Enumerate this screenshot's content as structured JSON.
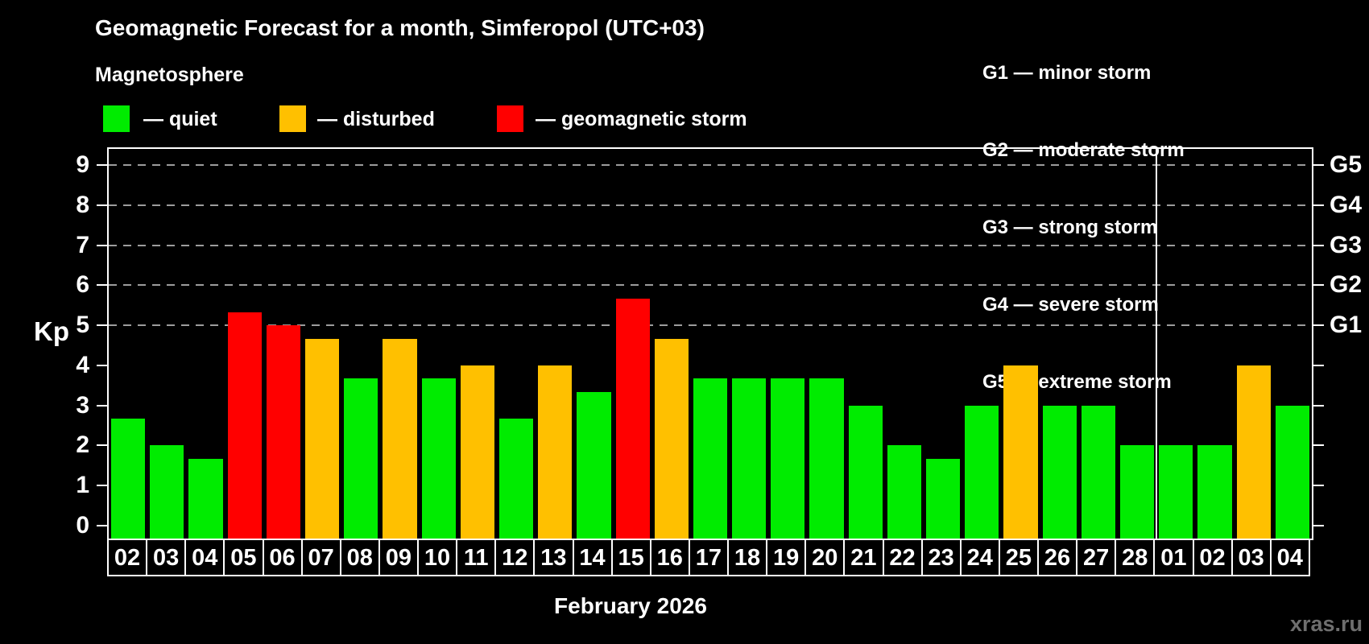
{
  "title": "Geomagnetic Forecast for a month, Simferopol (UTC+03)",
  "subtitle": "Magnetosphere",
  "legend": {
    "quiet": {
      "label": "— quiet",
      "color": "#00ec00"
    },
    "disturbed": {
      "label": "— disturbed",
      "color": "#ffc000"
    },
    "storm": {
      "label": "— geomagnetic storm",
      "color": "#ff0000"
    }
  },
  "storm_scale": [
    "G1 — minor storm",
    "G2 — moderate storm",
    "G3 — strong storm",
    "G4 — severe storm",
    "G5 — extreme storm"
  ],
  "chart_data": {
    "type": "bar",
    "title": "Geomagnetic Forecast for a month, Simferopol (UTC+03)",
    "xlabel": "February 2026",
    "ylabel": "Kp",
    "ylim": [
      -0.33,
      9.41
    ],
    "yticks": [
      0,
      1,
      2,
      3,
      4,
      5,
      6,
      7,
      8,
      9
    ],
    "gridlines": [
      5,
      6,
      7,
      8,
      9
    ],
    "grid": "dashed horizontal at Kp 5-9, behind bars",
    "legend_position": "top",
    "right_axis": [
      {
        "kp": 5,
        "g": "G1"
      },
      {
        "kp": 6,
        "g": "G2"
      },
      {
        "kp": 7,
        "g": "G3"
      },
      {
        "kp": 8,
        "g": "G4"
      },
      {
        "kp": 9,
        "g": "G5"
      }
    ],
    "categories": [
      "02",
      "03",
      "04",
      "05",
      "06",
      "07",
      "08",
      "09",
      "10",
      "11",
      "12",
      "13",
      "14",
      "15",
      "16",
      "17",
      "18",
      "19",
      "20",
      "21",
      "22",
      "23",
      "24",
      "25",
      "26",
      "27",
      "28",
      "01",
      "02",
      "03",
      "04"
    ],
    "values": [
      2.67,
      2,
      1.67,
      5.33,
      5,
      4.67,
      3.67,
      4.67,
      3.67,
      4,
      2.67,
      4,
      3.33,
      5.67,
      4.67,
      3.67,
      3.67,
      3.67,
      3.67,
      3,
      2,
      1.67,
      3,
      4,
      3,
      3,
      2,
      2,
      2,
      4,
      3
    ],
    "states": [
      "quiet",
      "quiet",
      "quiet",
      "storm",
      "storm",
      "disturbed",
      "quiet",
      "disturbed",
      "quiet",
      "disturbed",
      "quiet",
      "disturbed",
      "quiet",
      "storm",
      "disturbed",
      "quiet",
      "quiet",
      "quiet",
      "quiet",
      "quiet",
      "quiet",
      "quiet",
      "quiet",
      "disturbed",
      "quiet",
      "quiet",
      "quiet",
      "quiet",
      "quiet",
      "disturbed",
      "quiet"
    ],
    "month_separator_before_index": 27
  },
  "watermark": "xras.ru"
}
